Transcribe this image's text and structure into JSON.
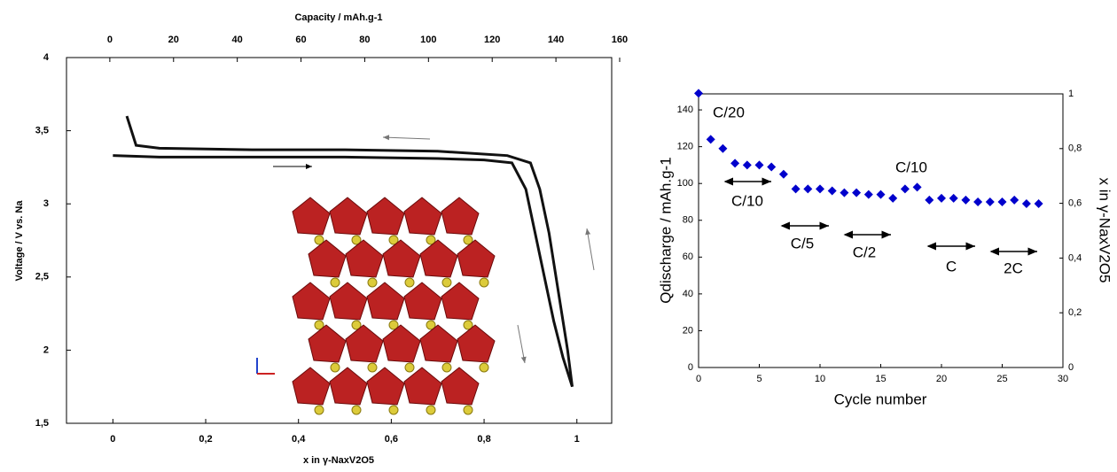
{
  "chart_data": [
    {
      "type": "line",
      "x2_label": "Capacity / mAh.g-1",
      "x_label": "x in γ-NaxV2O5",
      "y_label": "Voltage / V vs. Na",
      "xlim": [
        -0.1,
        1.075
      ],
      "xticks": [
        0,
        {
          "value": 0.2,
          "label": "0,2"
        },
        {
          "value": 0.4,
          "label": "0,4"
        },
        {
          "value": 0.6,
          "label": "0,6"
        },
        {
          "value": 0.8,
          "label": "0,8"
        },
        1
      ],
      "x2lim": [
        -13.6,
        157.5
      ],
      "x2ticks": [
        0,
        20,
        40,
        60,
        80,
        100,
        120,
        140,
        160
      ],
      "ylim": [
        1.5,
        4
      ],
      "yticks": [
        {
          "value": 1.5,
          "label": "1,5"
        },
        2,
        {
          "value": 2.5,
          "label": "2,5"
        },
        3,
        {
          "value": 3.5,
          "label": "3,5"
        },
        4
      ],
      "series": [
        {
          "color": "#111111",
          "x": [
            0,
            0.1,
            0.3,
            0.5,
            0.7,
            0.8,
            0.86,
            0.89,
            0.91,
            0.93,
            0.95,
            0.97,
            0.99
          ],
          "values": [
            3.33,
            3.32,
            3.32,
            3.32,
            3.31,
            3.3,
            3.28,
            3.1,
            2.8,
            2.5,
            2.2,
            1.95,
            1.75
          ]
        },
        {
          "color": "#111111",
          "x": [
            0.99,
            0.98,
            0.96,
            0.94,
            0.92,
            0.9,
            0.85,
            0.7,
            0.5,
            0.3,
            0.1,
            0.05,
            0.04,
            0.03
          ],
          "values": [
            1.75,
            2.0,
            2.4,
            2.8,
            3.1,
            3.28,
            3.33,
            3.36,
            3.37,
            3.37,
            3.38,
            3.4,
            3.5,
            3.6
          ]
        }
      ]
    },
    {
      "type": "scatter",
      "x_label": "Cycle number",
      "y_label": "Qdischarge / mAh.g-1",
      "y2_label": "x in γ-NaxV2O5",
      "xlim": [
        0,
        30
      ],
      "xticks": [
        0,
        5,
        10,
        15,
        20,
        25,
        30
      ],
      "ylim": [
        0,
        148.7
      ],
      "yticks": [
        0,
        20,
        40,
        60,
        80,
        100,
        120,
        140
      ],
      "y2lim": [
        0,
        1
      ],
      "y2ticks": [
        0,
        {
          "value": 0.2,
          "label": "0,2"
        },
        {
          "value": 0.4,
          "label": "0,4"
        },
        {
          "value": 0.6,
          "label": "0,6"
        },
        {
          "value": 0.8,
          "label": "0,8"
        },
        1
      ],
      "annotations": [
        "C/20",
        "C/10",
        "C/5",
        "C/2",
        "C/10",
        "C",
        "2C"
      ],
      "series": [
        {
          "color": "#0000cc",
          "x": [
            0,
            1,
            2,
            3,
            4,
            5,
            6,
            7,
            8,
            9,
            10,
            11,
            12,
            13,
            14,
            15,
            16,
            17,
            18,
            19,
            20,
            21,
            22,
            23,
            24,
            25,
            26,
            27,
            28
          ],
          "values": [
            149,
            124,
            119,
            111,
            110,
            110,
            109,
            105,
            97,
            97,
            97,
            96,
            95,
            95,
            94,
            94,
            92,
            97,
            98,
            91,
            92,
            92,
            91,
            90,
            90,
            90,
            91,
            89,
            89
          ]
        }
      ]
    }
  ]
}
